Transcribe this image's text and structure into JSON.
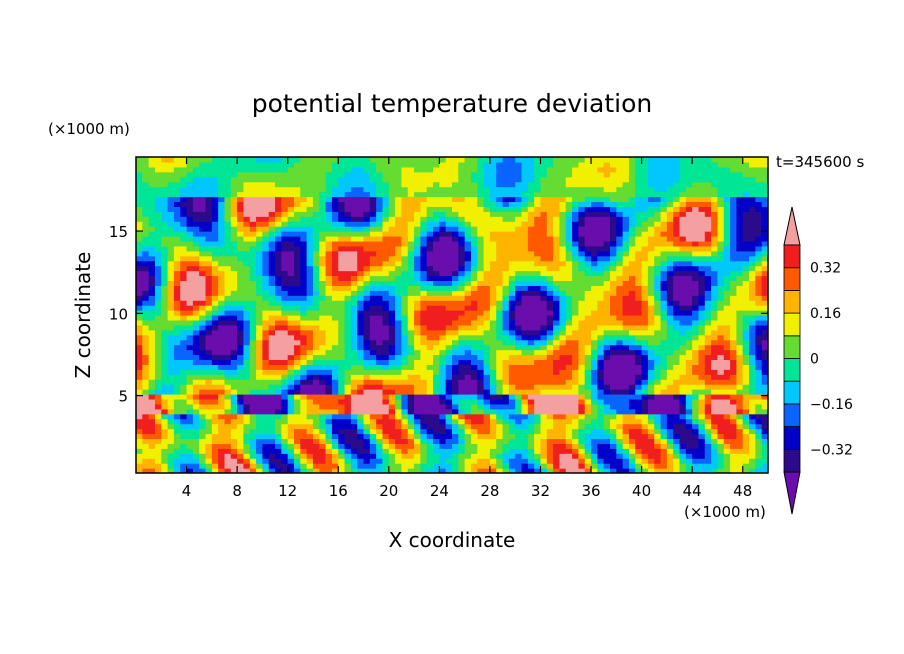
{
  "chart_data": {
    "type": "heatmap",
    "title": "potential temperature deviation",
    "xlabel": "X coordinate",
    "ylabel": "Z coordinate",
    "x_unit": "(×1000 m)",
    "y_unit": "(×1000 m)",
    "time_label": "t=345600 s",
    "xlim": [
      0,
      50
    ],
    "ylim": [
      0.3,
      19.5
    ],
    "x_ticks": [
      4,
      8,
      12,
      16,
      20,
      24,
      28,
      32,
      36,
      40,
      44,
      48
    ],
    "y_ticks": [
      5,
      10,
      15
    ],
    "colorbar": {
      "levels": [
        -0.4,
        -0.32,
        -0.24,
        -0.16,
        -0.08,
        0,
        0.08,
        0.16,
        0.24,
        0.32,
        0.4
      ],
      "colors": [
        "#6a0dad",
        "#2b0a8c",
        "#0000c8",
        "#0a64ff",
        "#00c8ff",
        "#00e696",
        "#64dc32",
        "#f0f000",
        "#ffb400",
        "#ff5a00",
        "#f01e1e",
        "#f5a0a0"
      ],
      "labels": [
        "0.32",
        "0.16",
        "0",
        "−0.16",
        "−0.32"
      ],
      "label_values": [
        0.32,
        0.16,
        0,
        -0.16,
        -0.32
      ]
    },
    "grid": false
  }
}
